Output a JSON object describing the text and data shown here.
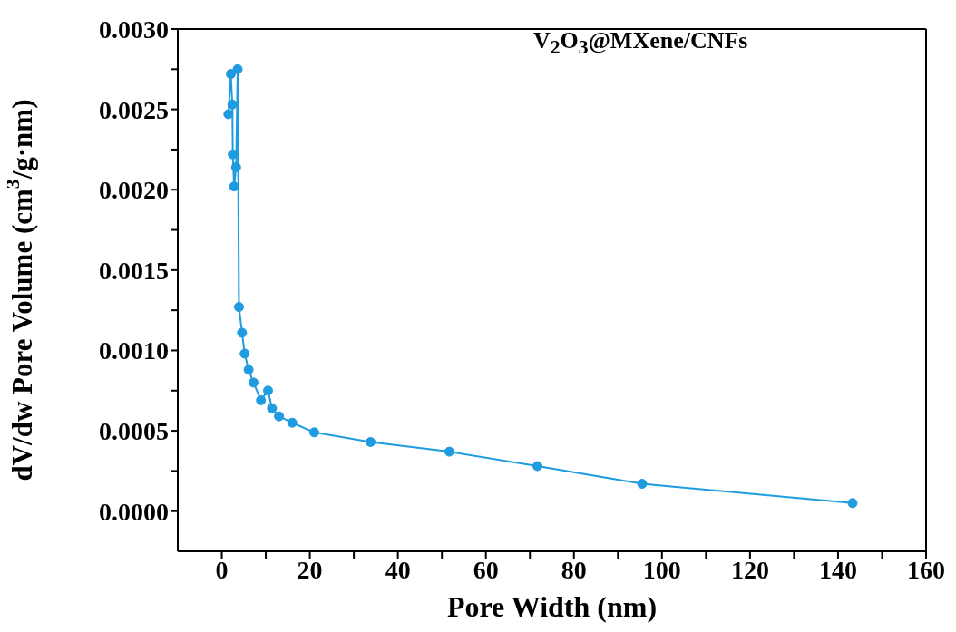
{
  "chart_data": {
    "type": "line",
    "xlabel": "Pore Width (nm)",
    "ylabel": "dV/dw Pore Volume (cm$^{3}$/g·nm)",
    "annotations": [
      "V$_{2}$O$_{3}$@MXene/CNFs"
    ],
    "x": [
      1.5,
      2.05,
      2.4,
      2.5,
      2.8,
      3.25,
      3.6,
      3.9,
      4.6,
      5.2,
      6.1,
      7.2,
      8.9,
      10.5,
      11.4,
      13.0,
      16.0,
      21.0,
      33.8,
      51.7,
      71.7,
      95.5,
      143.3
    ],
    "series": [
      {
        "color": "#1f9be0",
        "values": [
          0.00247,
          0.00272,
          0.00253,
          0.00222,
          0.00202,
          0.00214,
          0.00275,
          0.00127,
          0.00111,
          0.00098,
          0.00088,
          0.0008,
          0.00069,
          0.00075,
          0.00064,
          0.00059,
          0.00055,
          0.00049,
          0.00043,
          0.00037,
          0.00028,
          0.00017,
          5e-05
        ]
      }
    ],
    "xlim": [
      -10,
      160
    ],
    "xticks": [
      0,
      {
        "value": 10,
        "label": null
      },
      20,
      {
        "value": 30,
        "label": null
      },
      40,
      {
        "value": 50,
        "label": null
      },
      60,
      {
        "value": 70,
        "label": null
      },
      80,
      {
        "value": 90,
        "label": null
      },
      100,
      {
        "value": 110,
        "label": null
      },
      120,
      {
        "value": 130,
        "label": null
      },
      140,
      {
        "value": 150,
        "label": null
      },
      160
    ],
    "ylim": [
      -0.00025,
      0.003
    ],
    "yticks": [
      {
        "value": 0,
        "label": "0.0000"
      },
      {
        "value": 0.00025,
        "label": null
      },
      {
        "value": 0.0005,
        "label": "0.0005"
      },
      {
        "value": 0.00075,
        "label": null
      },
      {
        "value": 0.001,
        "label": "0.0010"
      },
      {
        "value": 0.00125,
        "label": null
      },
      {
        "value": 0.0015,
        "label": "0.0015"
      },
      {
        "value": 0.00175,
        "label": null
      },
      {
        "value": 0.002,
        "label": "0.0020"
      },
      {
        "value": 0.00225,
        "label": null
      },
      {
        "value": 0.0025,
        "label": "0.0025"
      },
      {
        "value": 0.00275,
        "label": null
      },
      {
        "value": 0.003,
        "label": "0.0030"
      }
    ],
    "grid": false,
    "legend": false,
    "marker": "circle",
    "line_style": "solid"
  }
}
